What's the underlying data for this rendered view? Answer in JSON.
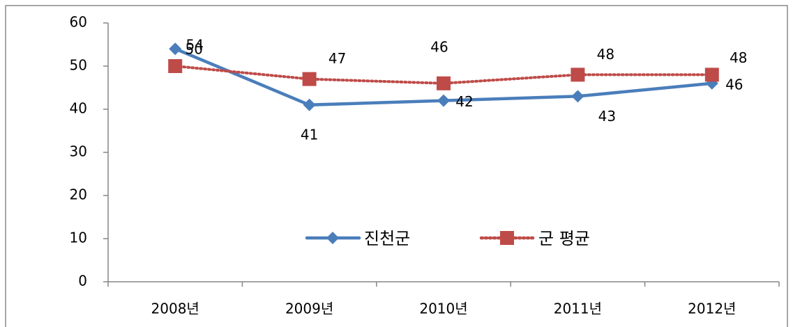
{
  "chart_data": {
    "type": "line",
    "categories": [
      "2008년",
      "2009년",
      "2010년",
      "2011년",
      "2012년"
    ],
    "series": [
      {
        "name": "진천군",
        "color": "#4a7ebb",
        "marker": "diamond",
        "dash": "solid",
        "values": [
          54,
          41,
          42,
          43,
          46
        ]
      },
      {
        "name": "군 평균",
        "color": "#be4b48",
        "marker": "square",
        "dash": "dotted",
        "values": [
          50,
          47,
          46,
          48,
          48
        ]
      }
    ],
    "ylim": [
      0,
      60
    ],
    "yticks": [
      0,
      10,
      20,
      30,
      40,
      50,
      60
    ],
    "grid": false,
    "legend": "bottom-center"
  }
}
